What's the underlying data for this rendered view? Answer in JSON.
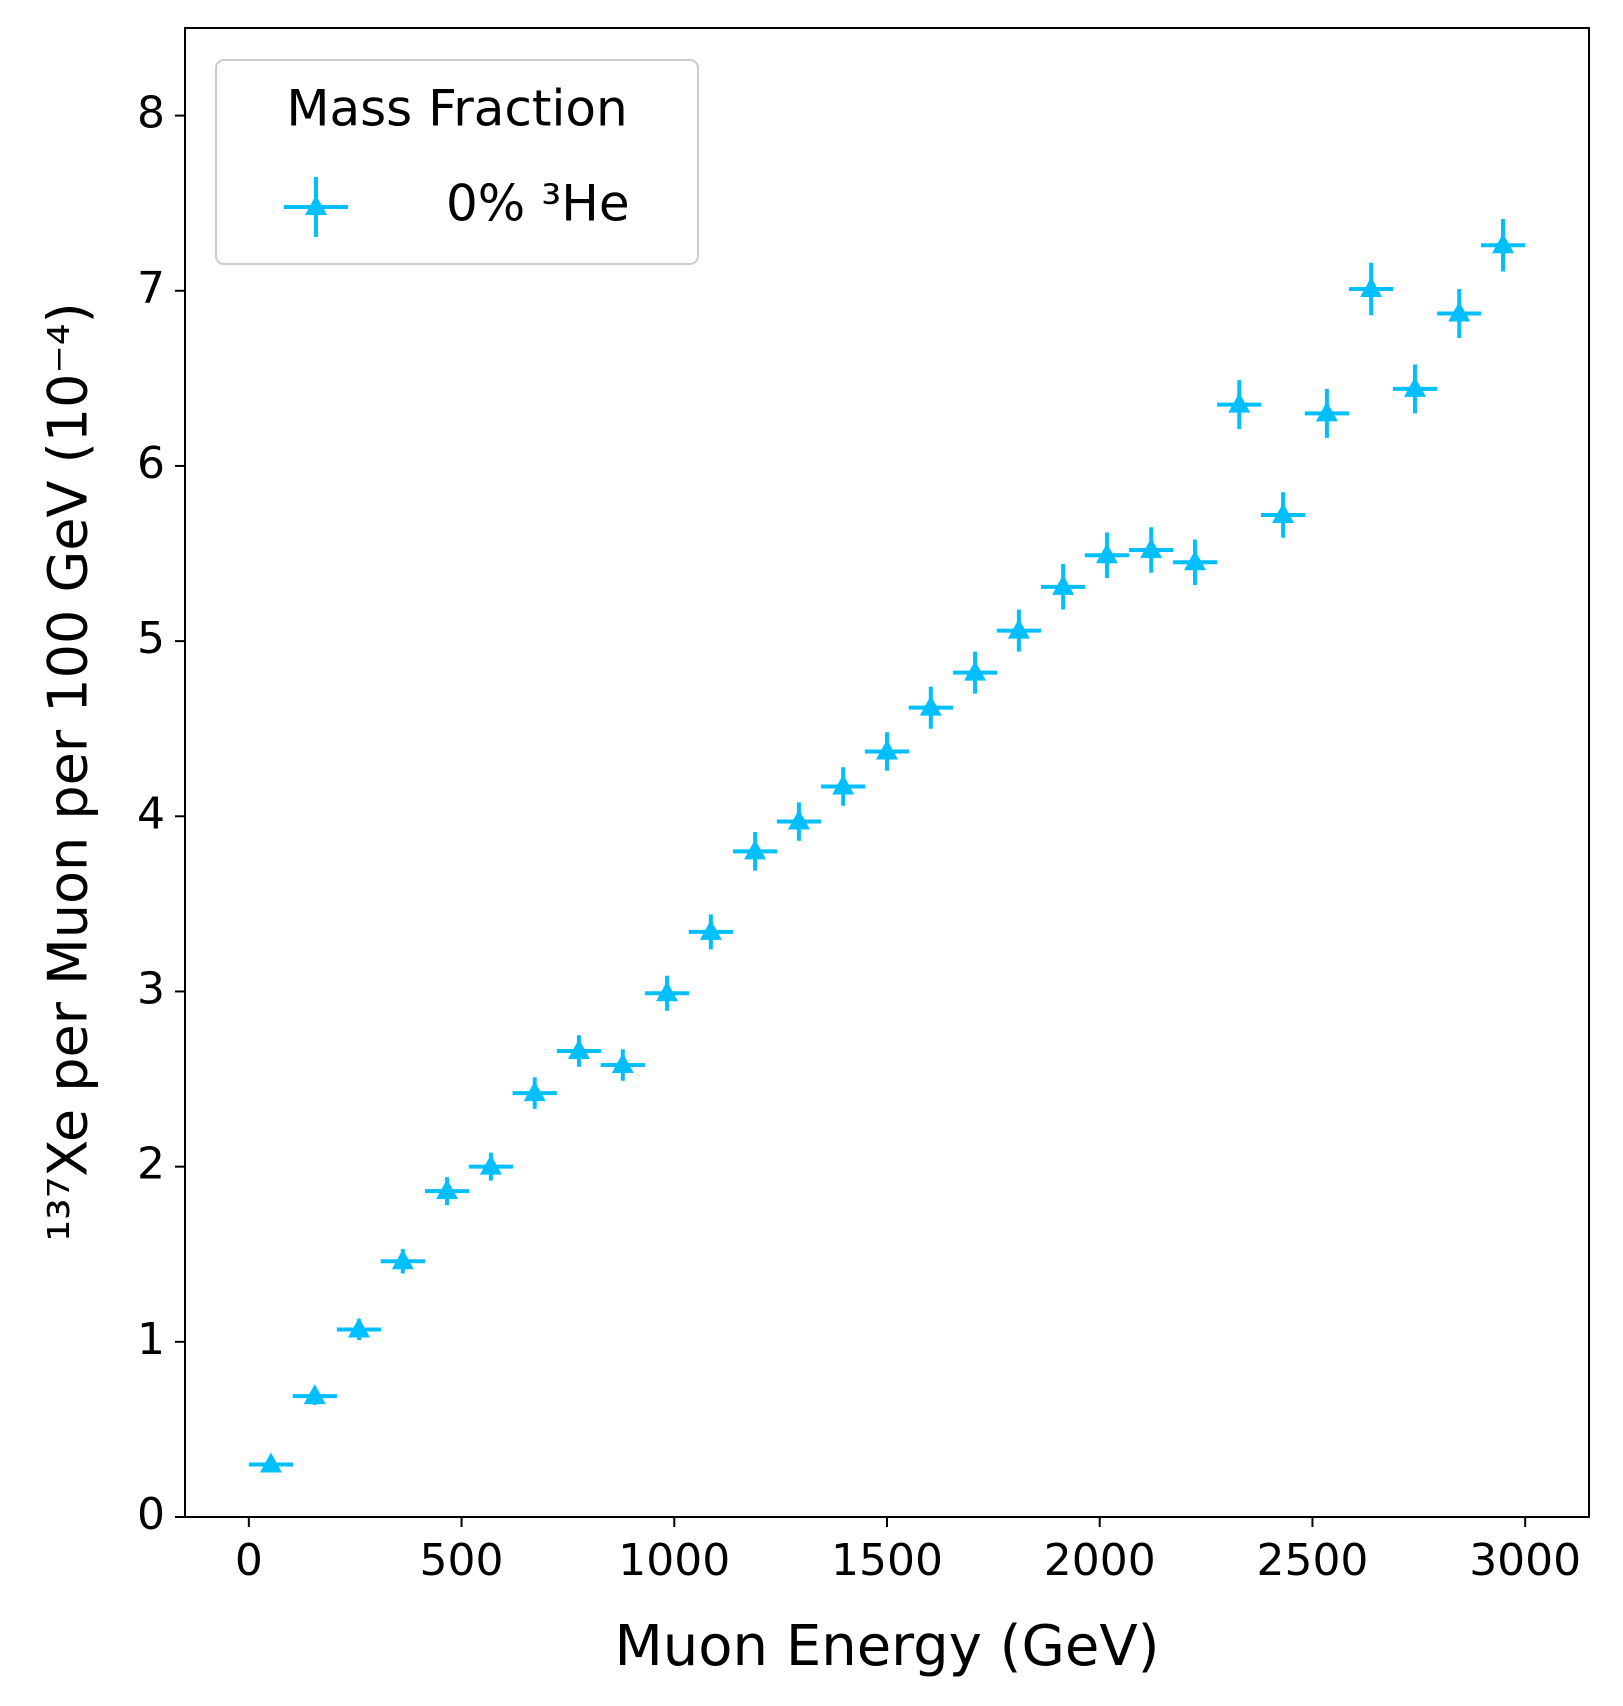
{
  "chart_data": {
    "type": "errorbar",
    "xlabel": "Muon Energy (GeV)",
    "ylabel": "¹³⁷Xe per Muon per 100 GeV (10⁻⁴)",
    "legend_title": "Mass Fraction",
    "legend_loc": "upper left",
    "series": [
      {
        "name": "0% ³He",
        "color": "#00bfff",
        "x": [
          52,
          155,
          259,
          362,
          466,
          569,
          672,
          776,
          879,
          983,
          1086,
          1190,
          1293,
          1397,
          1500,
          1603,
          1707,
          1810,
          1914,
          2017,
          2121,
          2224,
          2328,
          2431,
          2534,
          2638,
          2741,
          2845,
          2948
        ],
        "xerr": [
          52,
          52,
          52,
          52,
          52,
          52,
          52,
          52,
          52,
          52,
          52,
          52,
          52,
          52,
          52,
          52,
          52,
          52,
          52,
          52,
          52,
          52,
          52,
          52,
          52,
          52,
          52,
          52,
          52
        ],
        "values": [
          0.3,
          0.69,
          1.07,
          1.46,
          1.86,
          2.0,
          2.42,
          2.66,
          2.58,
          2.99,
          3.34,
          3.8,
          3.97,
          4.17,
          4.37,
          4.62,
          4.82,
          5.06,
          5.31,
          5.49,
          5.52,
          5.45,
          6.35,
          5.72,
          6.3,
          7.01,
          6.44,
          6.87,
          7.26
        ],
        "yerr": [
          0.03,
          0.05,
          0.06,
          0.07,
          0.08,
          0.08,
          0.09,
          0.09,
          0.09,
          0.1,
          0.1,
          0.11,
          0.11,
          0.11,
          0.11,
          0.12,
          0.12,
          0.12,
          0.13,
          0.13,
          0.13,
          0.13,
          0.14,
          0.13,
          0.14,
          0.15,
          0.14,
          0.14,
          0.15
        ]
      }
    ],
    "xlim": [
      -150,
      3150
    ],
    "xticks": [
      0,
      500,
      1000,
      1500,
      2000,
      2500,
      3000
    ],
    "ylim": [
      0,
      8.5
    ],
    "yticks": [
      0,
      1,
      2,
      3,
      4,
      5,
      6,
      7,
      8
    ]
  }
}
